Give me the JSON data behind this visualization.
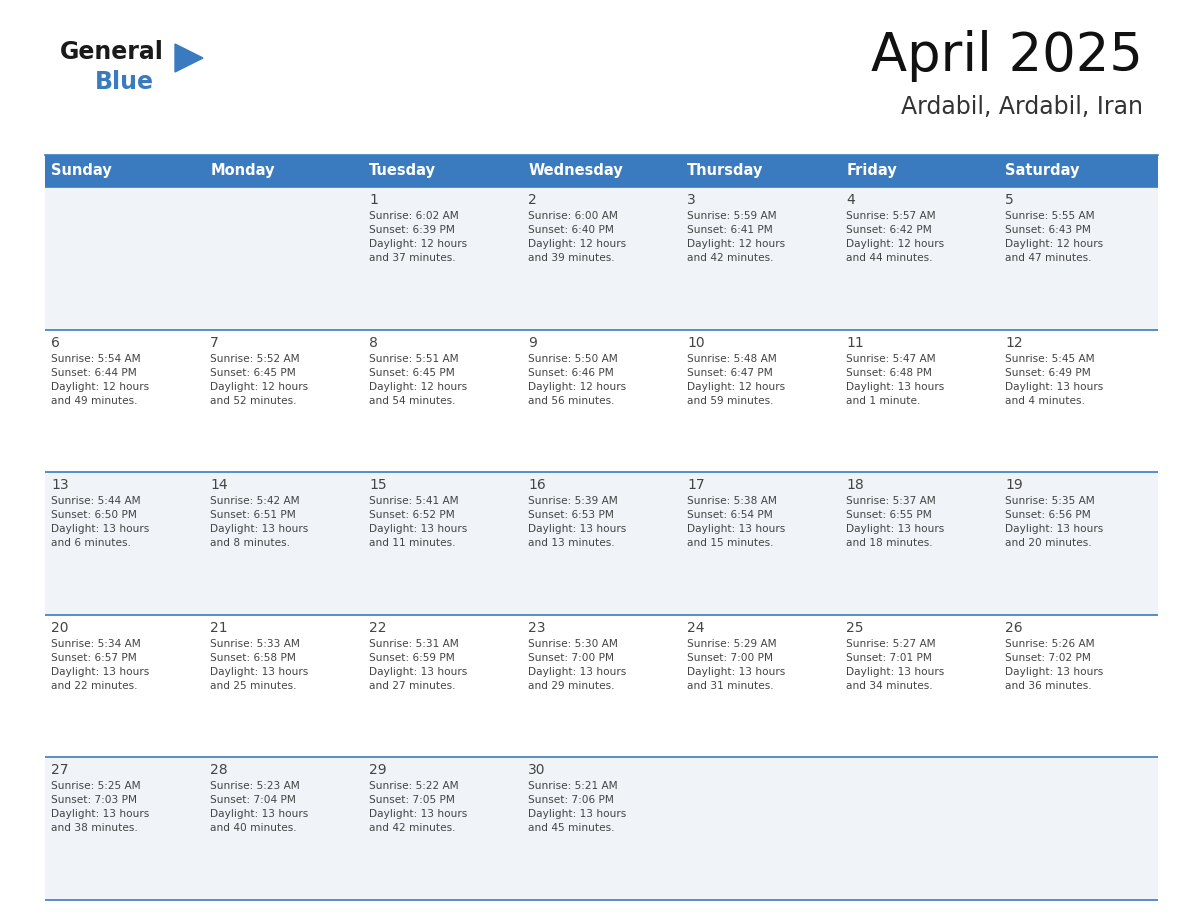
{
  "title": "April 2025",
  "subtitle": "Ardabil, Ardabil, Iran",
  "header_bg": "#3a7bbf",
  "header_text": "#ffffff",
  "cell_bg_odd": "#f0f4f8",
  "cell_bg_even": "#ffffff",
  "day_headers": [
    "Sunday",
    "Monday",
    "Tuesday",
    "Wednesday",
    "Thursday",
    "Friday",
    "Saturday"
  ],
  "days": [
    {
      "day": 1,
      "col": 2,
      "row": 0,
      "sunrise": "6:02 AM",
      "sunset": "6:39 PM",
      "daylight": "12 hours and 37 minutes."
    },
    {
      "day": 2,
      "col": 3,
      "row": 0,
      "sunrise": "6:00 AM",
      "sunset": "6:40 PM",
      "daylight": "12 hours and 39 minutes."
    },
    {
      "day": 3,
      "col": 4,
      "row": 0,
      "sunrise": "5:59 AM",
      "sunset": "6:41 PM",
      "daylight": "12 hours and 42 minutes."
    },
    {
      "day": 4,
      "col": 5,
      "row": 0,
      "sunrise": "5:57 AM",
      "sunset": "6:42 PM",
      "daylight": "12 hours and 44 minutes."
    },
    {
      "day": 5,
      "col": 6,
      "row": 0,
      "sunrise": "5:55 AM",
      "sunset": "6:43 PM",
      "daylight": "12 hours and 47 minutes."
    },
    {
      "day": 6,
      "col": 0,
      "row": 1,
      "sunrise": "5:54 AM",
      "sunset": "6:44 PM",
      "daylight": "12 hours and 49 minutes."
    },
    {
      "day": 7,
      "col": 1,
      "row": 1,
      "sunrise": "5:52 AM",
      "sunset": "6:45 PM",
      "daylight": "12 hours and 52 minutes."
    },
    {
      "day": 8,
      "col": 2,
      "row": 1,
      "sunrise": "5:51 AM",
      "sunset": "6:45 PM",
      "daylight": "12 hours and 54 minutes."
    },
    {
      "day": 9,
      "col": 3,
      "row": 1,
      "sunrise": "5:50 AM",
      "sunset": "6:46 PM",
      "daylight": "12 hours and 56 minutes."
    },
    {
      "day": 10,
      "col": 4,
      "row": 1,
      "sunrise": "5:48 AM",
      "sunset": "6:47 PM",
      "daylight": "12 hours and 59 minutes."
    },
    {
      "day": 11,
      "col": 5,
      "row": 1,
      "sunrise": "5:47 AM",
      "sunset": "6:48 PM",
      "daylight": "13 hours and 1 minute."
    },
    {
      "day": 12,
      "col": 6,
      "row": 1,
      "sunrise": "5:45 AM",
      "sunset": "6:49 PM",
      "daylight": "13 hours and 4 minutes."
    },
    {
      "day": 13,
      "col": 0,
      "row": 2,
      "sunrise": "5:44 AM",
      "sunset": "6:50 PM",
      "daylight": "13 hours and 6 minutes."
    },
    {
      "day": 14,
      "col": 1,
      "row": 2,
      "sunrise": "5:42 AM",
      "sunset": "6:51 PM",
      "daylight": "13 hours and 8 minutes."
    },
    {
      "day": 15,
      "col": 2,
      "row": 2,
      "sunrise": "5:41 AM",
      "sunset": "6:52 PM",
      "daylight": "13 hours and 11 minutes."
    },
    {
      "day": 16,
      "col": 3,
      "row": 2,
      "sunrise": "5:39 AM",
      "sunset": "6:53 PM",
      "daylight": "13 hours and 13 minutes."
    },
    {
      "day": 17,
      "col": 4,
      "row": 2,
      "sunrise": "5:38 AM",
      "sunset": "6:54 PM",
      "daylight": "13 hours and 15 minutes."
    },
    {
      "day": 18,
      "col": 5,
      "row": 2,
      "sunrise": "5:37 AM",
      "sunset": "6:55 PM",
      "daylight": "13 hours and 18 minutes."
    },
    {
      "day": 19,
      "col": 6,
      "row": 2,
      "sunrise": "5:35 AM",
      "sunset": "6:56 PM",
      "daylight": "13 hours and 20 minutes."
    },
    {
      "day": 20,
      "col": 0,
      "row": 3,
      "sunrise": "5:34 AM",
      "sunset": "6:57 PM",
      "daylight": "13 hours and 22 minutes."
    },
    {
      "day": 21,
      "col": 1,
      "row": 3,
      "sunrise": "5:33 AM",
      "sunset": "6:58 PM",
      "daylight": "13 hours and 25 minutes."
    },
    {
      "day": 22,
      "col": 2,
      "row": 3,
      "sunrise": "5:31 AM",
      "sunset": "6:59 PM",
      "daylight": "13 hours and 27 minutes."
    },
    {
      "day": 23,
      "col": 3,
      "row": 3,
      "sunrise": "5:30 AM",
      "sunset": "7:00 PM",
      "daylight": "13 hours and 29 minutes."
    },
    {
      "day": 24,
      "col": 4,
      "row": 3,
      "sunrise": "5:29 AM",
      "sunset": "7:00 PM",
      "daylight": "13 hours and 31 minutes."
    },
    {
      "day": 25,
      "col": 5,
      "row": 3,
      "sunrise": "5:27 AM",
      "sunset": "7:01 PM",
      "daylight": "13 hours and 34 minutes."
    },
    {
      "day": 26,
      "col": 6,
      "row": 3,
      "sunrise": "5:26 AM",
      "sunset": "7:02 PM",
      "daylight": "13 hours and 36 minutes."
    },
    {
      "day": 27,
      "col": 0,
      "row": 4,
      "sunrise": "5:25 AM",
      "sunset": "7:03 PM",
      "daylight": "13 hours and 38 minutes."
    },
    {
      "day": 28,
      "col": 1,
      "row": 4,
      "sunrise": "5:23 AM",
      "sunset": "7:04 PM",
      "daylight": "13 hours and 40 minutes."
    },
    {
      "day": 29,
      "col": 2,
      "row": 4,
      "sunrise": "5:22 AM",
      "sunset": "7:05 PM",
      "daylight": "13 hours and 42 minutes."
    },
    {
      "day": 30,
      "col": 3,
      "row": 4,
      "sunrise": "5:21 AM",
      "sunset": "7:06 PM",
      "daylight": "13 hours and 45 minutes."
    }
  ],
  "n_rows": 5,
  "n_cols": 7,
  "logo_text_general": "General",
  "logo_text_blue": "Blue",
  "logo_triangle_color": "#3a7bbf",
  "text_color_dark": "#222222",
  "divider_color": "#3a7bbf",
  "cell_text_color": "#444444"
}
